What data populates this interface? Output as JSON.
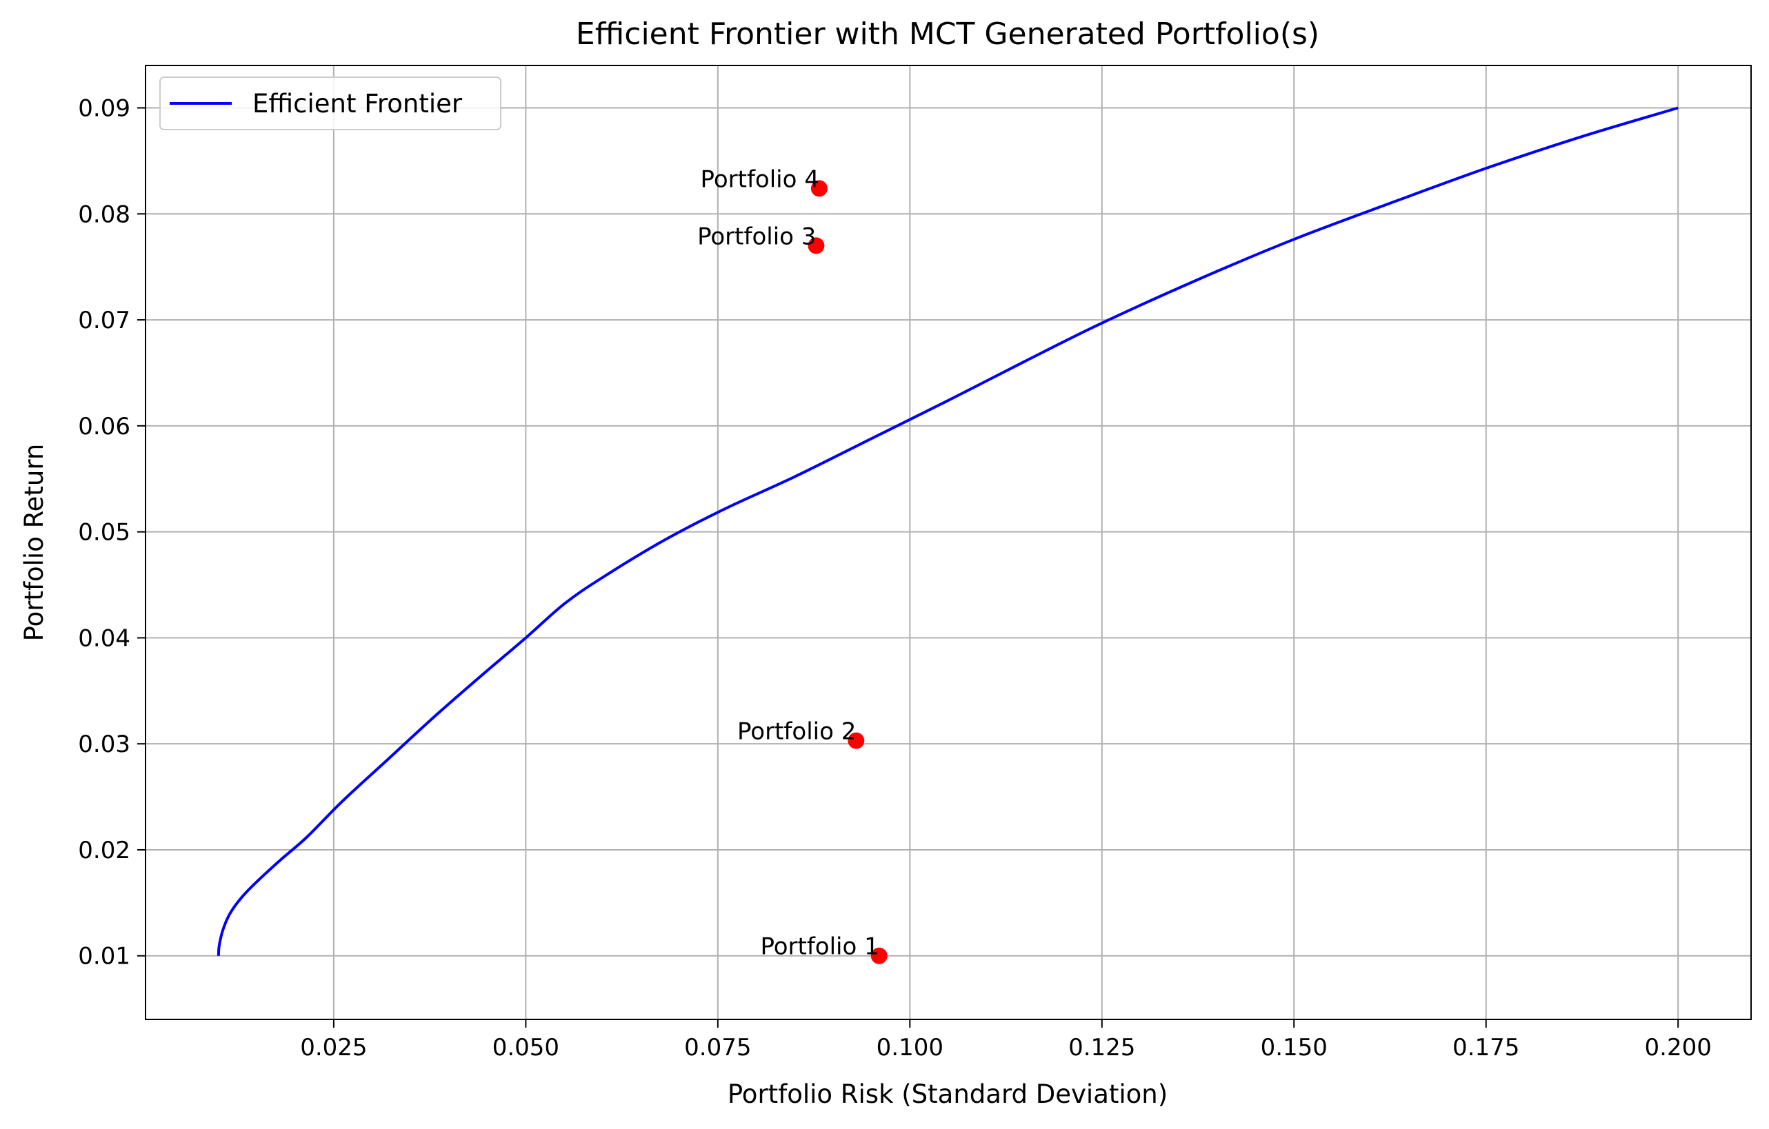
{
  "chart_data": {
    "type": "line",
    "title": "Efficient Frontier with MCT Generated Portfolio(s)",
    "xlabel": "Portfolio Risk (Standard Deviation)",
    "ylabel": "Portfolio Return",
    "xlim": [
      0.0005,
      0.2095
    ],
    "ylim": [
      0.004,
      0.094
    ],
    "xticks": [
      0.025,
      0.05,
      0.075,
      0.1,
      0.125,
      0.15,
      0.175,
      0.2
    ],
    "xtick_labels": [
      "0.025",
      "0.050",
      "0.075",
      "0.100",
      "0.125",
      "0.150",
      "0.175",
      "0.200"
    ],
    "yticks": [
      0.01,
      0.02,
      0.03,
      0.04,
      0.05,
      0.06,
      0.07,
      0.08,
      0.09
    ],
    "ytick_labels": [
      "0.01",
      "0.02",
      "0.03",
      "0.04",
      "0.05",
      "0.06",
      "0.07",
      "0.08",
      "0.09"
    ],
    "grid": true,
    "legend": {
      "position": "upper-left",
      "entries": [
        "Efficient Frontier"
      ]
    },
    "series": [
      {
        "name": "Efficient Frontier",
        "color": "#0000ff",
        "x": [
          0.01,
          0.0101,
          0.0106,
          0.0115,
          0.013,
          0.015,
          0.018,
          0.0215,
          0.026,
          0.032,
          0.038,
          0.044,
          0.05,
          0.055,
          0.06,
          0.068,
          0.076,
          0.085,
          0.095,
          0.105,
          0.115,
          0.125,
          0.1375,
          0.15,
          0.1625,
          0.175,
          0.1875,
          0.2
        ],
        "y": [
          0.01,
          0.011,
          0.0125,
          0.014,
          0.0155,
          0.017,
          0.019,
          0.0212,
          0.0245,
          0.0285,
          0.0325,
          0.0363,
          0.04,
          0.0432,
          0.0457,
          0.0492,
          0.0522,
          0.0552,
          0.0588,
          0.0624,
          0.0661,
          0.0697,
          0.0738,
          0.0776,
          0.081,
          0.0843,
          0.0873,
          0.09
        ]
      }
    ],
    "points": [
      {
        "label": "Portfolio 1",
        "x": 0.096,
        "y": 0.01,
        "color": "#ff0000"
      },
      {
        "label": "Portfolio 2",
        "x": 0.093,
        "y": 0.0303,
        "color": "#ff0000"
      },
      {
        "label": "Portfolio 3",
        "x": 0.0878,
        "y": 0.077,
        "color": "#ff0000"
      },
      {
        "label": "Portfolio 4",
        "x": 0.0882,
        "y": 0.0824,
        "color": "#ff0000"
      }
    ]
  }
}
